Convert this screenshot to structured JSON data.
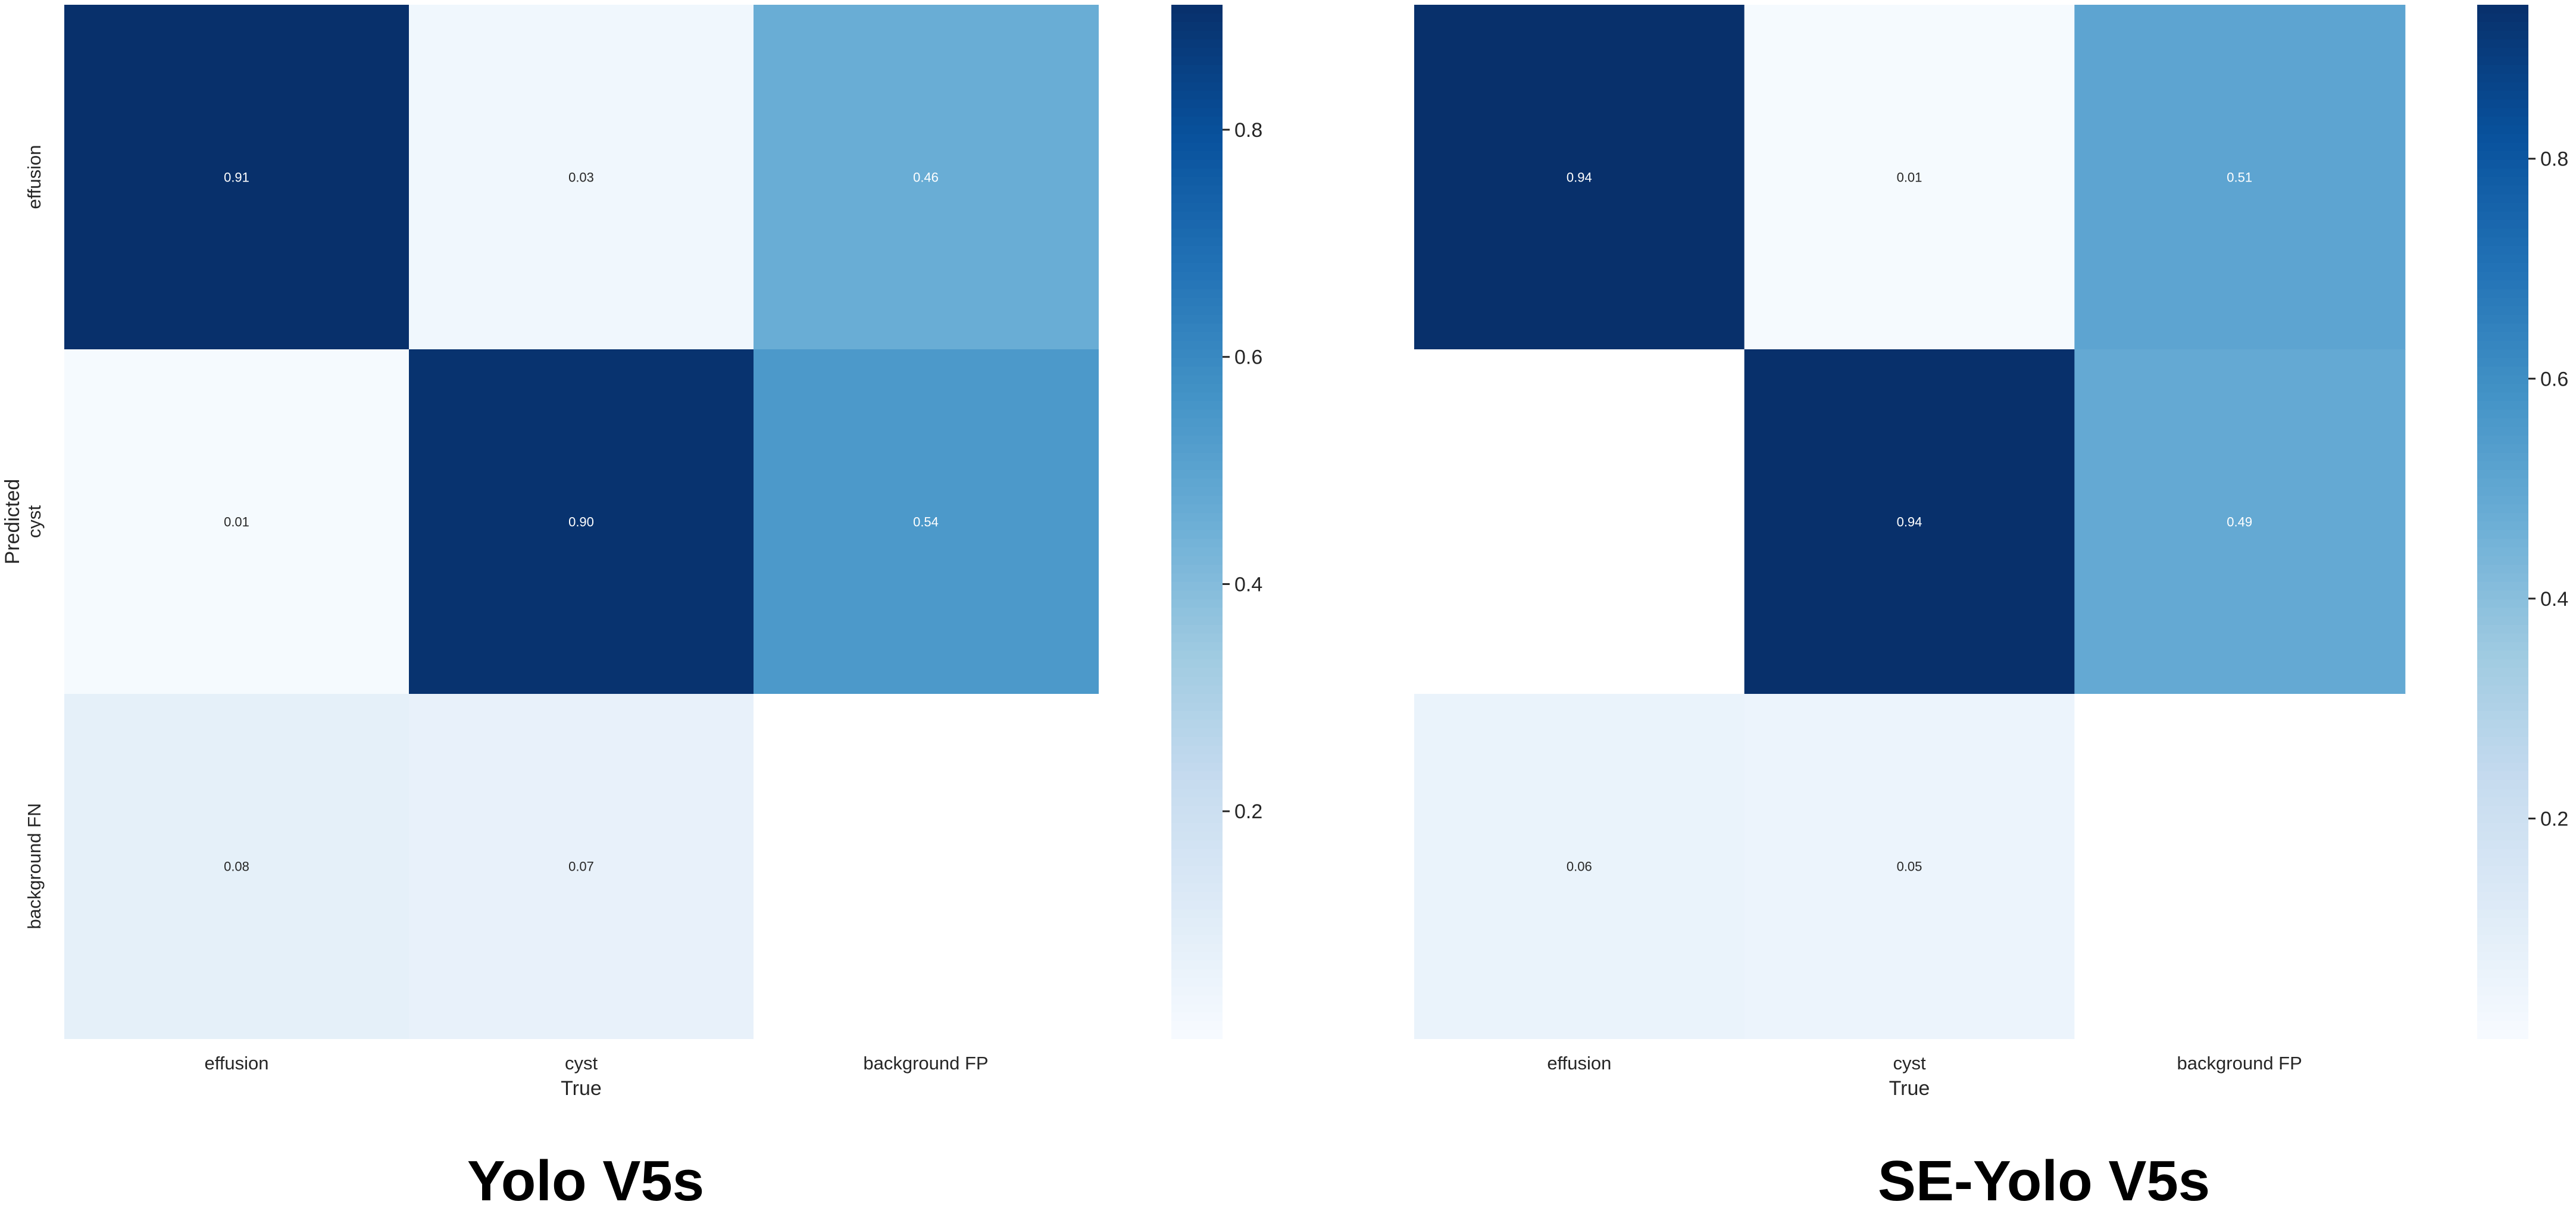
{
  "chart_data": [
    {
      "type": "heatmap",
      "title": "Yolo V5s",
      "xlabel": "True",
      "ylabel": "Predicted",
      "x_categories": [
        "effusion",
        "cyst",
        "background FP"
      ],
      "y_categories": [
        "effusion",
        "cyst",
        "background FN"
      ],
      "values": [
        [
          0.91,
          0.03,
          0.46
        ],
        [
          0.01,
          0.9,
          0.54
        ],
        [
          0.08,
          0.07,
          null
        ]
      ],
      "value_labels": [
        [
          "0.91",
          "0.03",
          "0.46"
        ],
        [
          "0.01",
          "0.90",
          "0.54"
        ],
        [
          "0.08",
          "0.07",
          ""
        ]
      ],
      "colormap": "Blues",
      "vmin": 0.0,
      "vmax": 0.91,
      "colorbar_ticks": [
        0.2,
        0.4,
        0.6,
        0.8
      ],
      "colorbar_tick_labels": [
        "0.2",
        "0.4",
        "0.6",
        "0.8"
      ]
    },
    {
      "type": "heatmap",
      "title": "SE-Yolo V5s",
      "xlabel": "True",
      "ylabel": "",
      "x_categories": [
        "effusion",
        "cyst",
        "background FP"
      ],
      "y_categories": [],
      "values": [
        [
          0.94,
          0.01,
          0.51
        ],
        [
          null,
          0.94,
          0.49
        ],
        [
          0.06,
          0.05,
          null
        ]
      ],
      "value_labels": [
        [
          "0.94",
          "0.01",
          "0.51"
        ],
        [
          "",
          "0.94",
          "0.49"
        ],
        [
          "0.06",
          "0.05",
          ""
        ]
      ],
      "colormap": "Blues",
      "vmin": 0.0,
      "vmax": 0.94,
      "colorbar_ticks": [
        0.2,
        0.4,
        0.6,
        0.8
      ],
      "colorbar_tick_labels": [
        "0.2",
        "0.4",
        "0.6",
        "0.8"
      ]
    }
  ]
}
